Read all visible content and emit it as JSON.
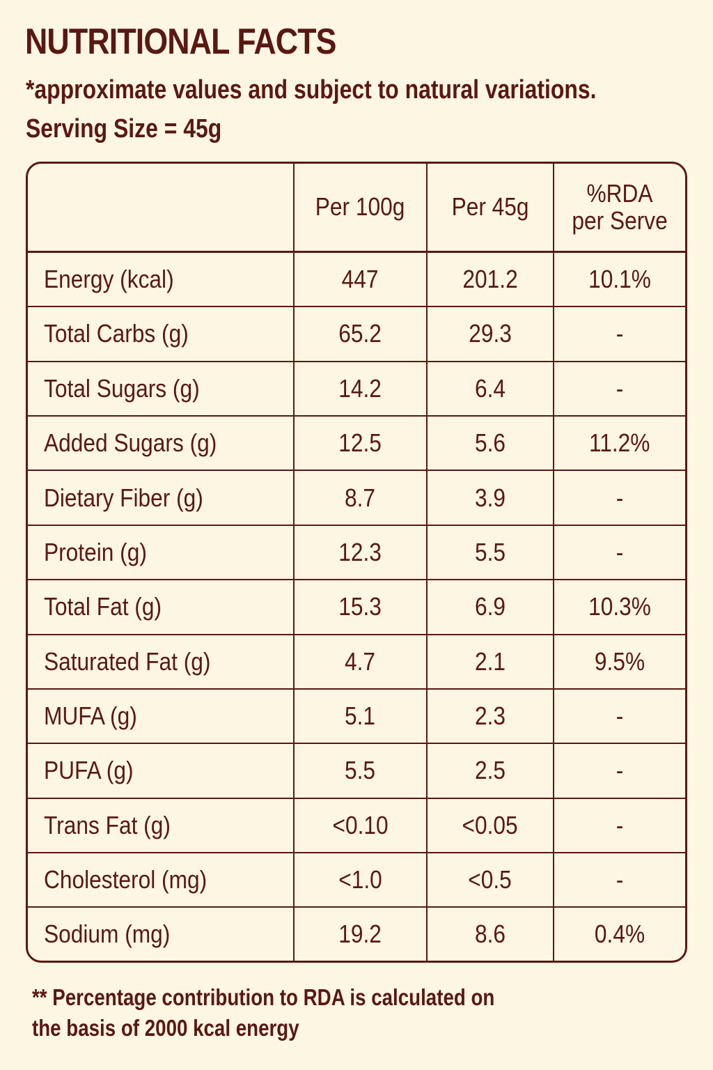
{
  "title": "NUTRITIONAL FACTS",
  "subtitle": "*approximate values and subject to natural variations.",
  "serving_size": "Serving Size = 45g",
  "table": {
    "headers": {
      "nutrient": "",
      "per_100g": "Per 100g",
      "per_45g": "Per 45g",
      "rda_line1": "%RDA",
      "rda_line2": "per Serve"
    },
    "rows": [
      {
        "nutrient": "Energy (kcal)",
        "per_100g": "447",
        "per_45g": "201.2",
        "rda": "10.1%"
      },
      {
        "nutrient": "Total Carbs (g)",
        "per_100g": "65.2",
        "per_45g": "29.3",
        "rda": "-"
      },
      {
        "nutrient": "Total Sugars (g)",
        "per_100g": "14.2",
        "per_45g": "6.4",
        "rda": "-"
      },
      {
        "nutrient": "Added Sugars (g)",
        "per_100g": "12.5",
        "per_45g": "5.6",
        "rda": "11.2%"
      },
      {
        "nutrient": "Dietary Fiber (g)",
        "per_100g": "8.7",
        "per_45g": "3.9",
        "rda": "-"
      },
      {
        "nutrient": "Protein (g)",
        "per_100g": "12.3",
        "per_45g": "5.5",
        "rda": "-"
      },
      {
        "nutrient": "Total Fat (g)",
        "per_100g": "15.3",
        "per_45g": "6.9",
        "rda": "10.3%"
      },
      {
        "nutrient": "Saturated Fat (g)",
        "per_100g": "4.7",
        "per_45g": "2.1",
        "rda": "9.5%"
      },
      {
        "nutrient": "MUFA (g)",
        "per_100g": "5.1",
        "per_45g": "2.3",
        "rda": "-"
      },
      {
        "nutrient": "PUFA (g)",
        "per_100g": "5.5",
        "per_45g": "2.5",
        "rda": "-"
      },
      {
        "nutrient": "Trans Fat (g)",
        "per_100g": "<0.10",
        "per_45g": "<0.05",
        "rda": "-"
      },
      {
        "nutrient": "Cholesterol (mg)",
        "per_100g": "<1.0",
        "per_45g": "<0.5",
        "rda": "-"
      },
      {
        "nutrient": "Sodium (mg)",
        "per_100g": "19.2",
        "per_45g": "8.6",
        "rda": "0.4%"
      }
    ]
  },
  "footnote": {
    "line1": "** Percentage contribution to RDA is calculated on",
    "line2": "the basis of 2000 kcal energy"
  },
  "colors": {
    "background": "#fdf6e3",
    "text": "#5a1812",
    "border": "#5a1812"
  }
}
